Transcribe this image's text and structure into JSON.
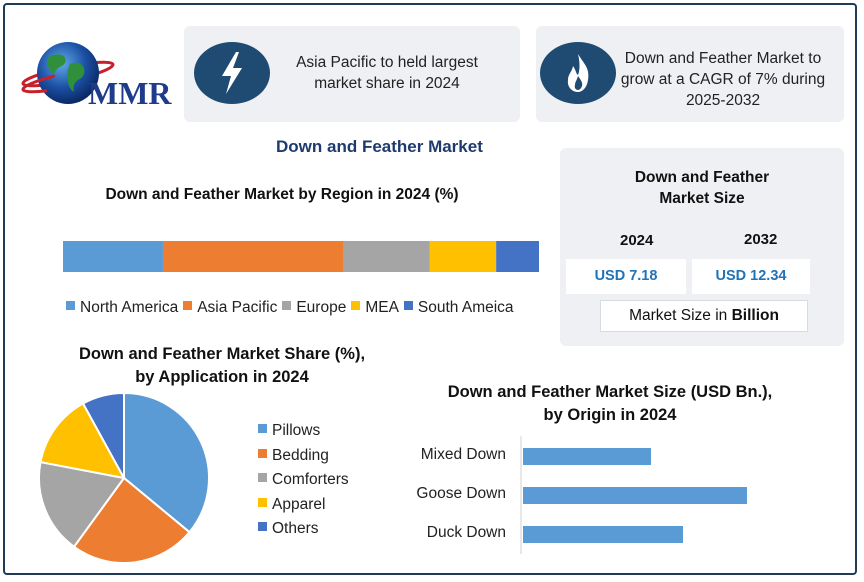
{
  "logo": {
    "text": "MMR"
  },
  "cards": [
    {
      "icon": "lightning-icon",
      "text": "Asia Pacific to held largest market share in 2024"
    },
    {
      "icon": "flame-icon",
      "text": "Down and Feather Market to grow at a CAGR of 7% during 2025-2032"
    }
  ],
  "main_title": "Down and Feather Market",
  "market_size": {
    "title_line1": "Down and Feather",
    "title_line2": "Market Size",
    "years": [
      "2024",
      "2032"
    ],
    "values": [
      "USD 7.18",
      "USD 12.34"
    ],
    "footer_prefix": "Market Size in ",
    "footer_bold": "Billion"
  },
  "colors": {
    "blue": "#5b9bd5",
    "orange": "#ed7d31",
    "gray": "#a5a5a5",
    "yellow": "#ffc000",
    "darkblue": "#4472c4",
    "navy": "#1f4b73"
  },
  "chart_data": [
    {
      "type": "bar",
      "orientation": "horizontal-stacked",
      "title": "Down and Feather Market by Region in 2024 (%)",
      "legend_position": "bottom",
      "series": [
        {
          "name": "North America",
          "value": 21,
          "color": "#5b9bd5"
        },
        {
          "name": "Asia Pacific",
          "value": 38,
          "color": "#ed7d31"
        },
        {
          "name": "Europe",
          "value": 18,
          "color": "#a5a5a5"
        },
        {
          "name": "MEA",
          "value": 14,
          "color": "#ffc000"
        },
        {
          "name": "South Ameica",
          "value": 9,
          "color": "#4472c4"
        }
      ]
    },
    {
      "type": "pie",
      "title_line1": "Down and Feather Market Share (%),",
      "title_line2": "by Application in 2024",
      "legend_position": "right",
      "slices": [
        {
          "name": "Pillows",
          "value": 36,
          "color": "#5b9bd5"
        },
        {
          "name": "Bedding",
          "value": 24,
          "color": "#ed7d31"
        },
        {
          "name": "Comforters",
          "value": 18,
          "color": "#a5a5a5"
        },
        {
          "name": "Apparel",
          "value": 14,
          "color": "#ffc000"
        },
        {
          "name": "Others",
          "value": 8,
          "color": "#4472c4"
        }
      ]
    },
    {
      "type": "bar",
      "orientation": "horizontal",
      "title_line1": "Down and Feather Market Size (USD Bn.),",
      "title_line2": "by Origin in 2024",
      "categories": [
        "Mixed Down",
        "Goose Down",
        "Duck Down"
      ],
      "values": [
        1.6,
        2.8,
        2.0
      ],
      "xlim": [
        0,
        3.5
      ],
      "color": "#5b9bd5"
    }
  ]
}
